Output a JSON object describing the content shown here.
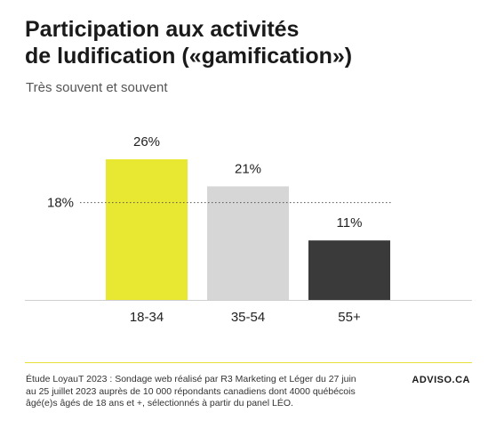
{
  "title_line1": "Participation aux activités",
  "title_line2": "de ludification («gamification»)",
  "subtitle": "Très souvent et souvent",
  "chart_data": {
    "type": "bar",
    "categories": [
      "18-34",
      "35-54",
      "55+"
    ],
    "values": [
      26,
      21,
      11
    ],
    "value_labels": [
      "26%",
      "21%",
      "11%"
    ],
    "colors": [
      "#e8e832",
      "#d6d6d6",
      "#3a3a3a"
    ],
    "reference_line": {
      "value": 18,
      "label": "18%"
    },
    "ylim": [
      0,
      30
    ],
    "grid": false,
    "legend": "none"
  },
  "source": "Étude LoyauT 2023 : Sondage web réalisé par R3 Marketing et Léger du 27 juin au 25 juillet 2023 auprès de 10 000 répondants canadiens dont 4000 québécois âgé(e)s âgés de 18 ans et +, sélectionnés à partir du panel LÉO.",
  "brand": "ADVISO.CA"
}
